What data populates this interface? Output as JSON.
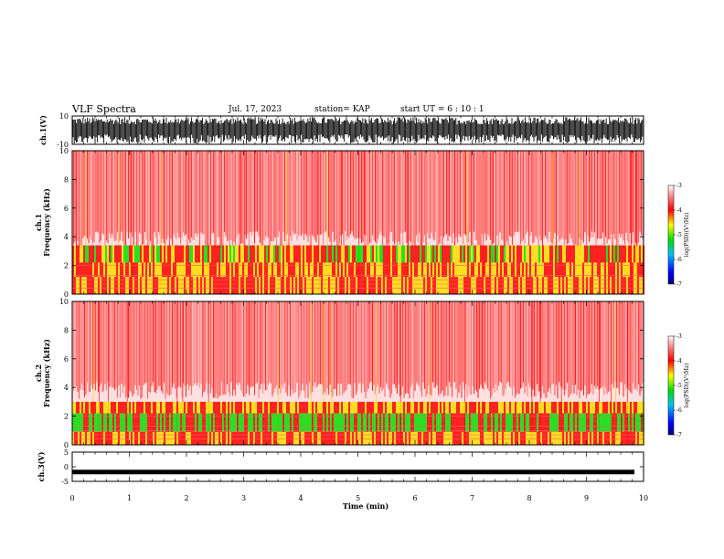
{
  "header": {
    "title": "VLF Spectra",
    "date": "Jul. 17, 2023",
    "station": "station= KAP",
    "start": "start UT = 6 : 10 : 1"
  },
  "colors": {
    "background": "#ffffff",
    "spectrogram_high": "#ff0000",
    "spectrogram_mid": "#ffdd00",
    "spectrogram_low": "#00e000",
    "trace": "#000000"
  },
  "chart_data": [
    {
      "type": "line",
      "panel": "ch1-waveform",
      "ylabel": "ch.1(V)",
      "ylim": [
        -10,
        10
      ],
      "yticks": [
        "10",
        "-10"
      ],
      "xlim": [
        0,
        10
      ],
      "description_values": {
        "approx_amplitude_V": [
          -9,
          9
        ]
      }
    },
    {
      "type": "heatmap",
      "panel": "ch1-spectrogram",
      "ylabel": "ch.1\nFrequency (kHz)",
      "ylim": [
        0,
        10
      ],
      "yticks": [
        "0",
        "2",
        "4",
        "6",
        "8",
        "10"
      ],
      "xlim": [
        0,
        10
      ],
      "colorbar": {
        "label": "log(PSD)(V²/Hz)",
        "range": [
          -7,
          -3
        ],
        "ticks": [
          "-3",
          "-4",
          "-5",
          "-6",
          "-7"
        ]
      },
      "bands_kHz": [
        {
          "from": 0,
          "to": 1.2,
          "level": -4.5
        },
        {
          "from": 1.2,
          "to": 2.2,
          "level": -4.6
        },
        {
          "from": 2.2,
          "to": 3.4,
          "level": -4.7
        },
        {
          "from": 3.4,
          "to": 10,
          "level": -3.6
        }
      ]
    },
    {
      "type": "heatmap",
      "panel": "ch2-spectrogram",
      "ylabel": "ch.2\nFrequency (kHz)",
      "ylim": [
        0,
        10
      ],
      "yticks": [
        "0",
        "2",
        "4",
        "6",
        "8",
        "10"
      ],
      "xlim": [
        0,
        10
      ],
      "colorbar": {
        "label": "log(PSD)(V²/Hz)",
        "range": [
          -7,
          -3
        ],
        "ticks": [
          "-3",
          "-4",
          "-5",
          "-6",
          "-7"
        ]
      },
      "bands_kHz": [
        {
          "from": 0,
          "to": 0.9,
          "level": -4.5
        },
        {
          "from": 0.9,
          "to": 2.2,
          "level": -5.0
        },
        {
          "from": 2.2,
          "to": 3.0,
          "level": -4.8
        },
        {
          "from": 3.0,
          "to": 10,
          "level": -3.6
        }
      ]
    },
    {
      "type": "line",
      "panel": "ch3-waveform",
      "ylabel": "ch.3(V)",
      "ylim": [
        -5,
        5
      ],
      "yticks": [
        "5",
        "0",
        "-5"
      ],
      "xlim": [
        0,
        10
      ],
      "description_values": {
        "approx_level_V": -1.8
      }
    }
  ],
  "xaxis": {
    "label": "Time (min)",
    "ticks": [
      "0",
      "1",
      "2",
      "3",
      "4",
      "5",
      "6",
      "7",
      "8",
      "9",
      "10"
    ]
  }
}
